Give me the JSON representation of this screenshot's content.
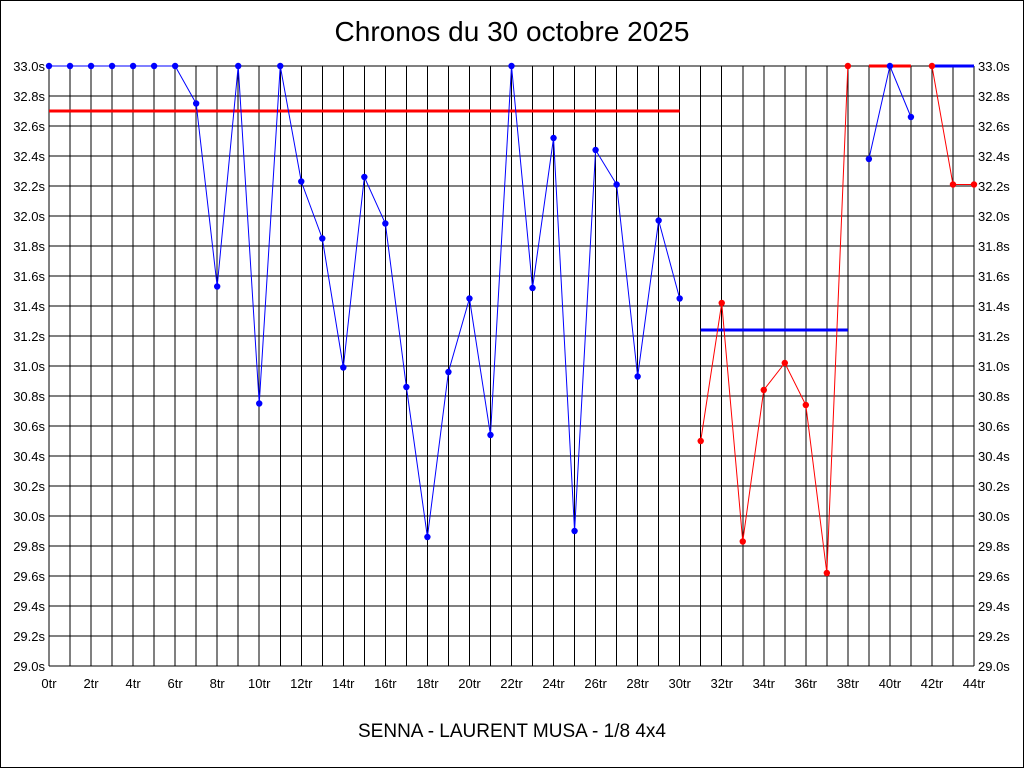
{
  "chart_data": {
    "type": "line",
    "title": "Chronos du 30 octobre 2025",
    "subtitle": "SENNA - LAURENT MUSA - 1/8 4x4",
    "xlabel": "",
    "ylabel": "",
    "grid": true,
    "xlim": [
      0,
      44
    ],
    "ylim": [
      29.0,
      33.0
    ],
    "x_ticks": [
      "0tr",
      "2tr",
      "4tr",
      "6tr",
      "8tr",
      "10tr",
      "12tr",
      "14tr",
      "16tr",
      "18tr",
      "20tr",
      "22tr",
      "24tr",
      "26tr",
      "28tr",
      "30tr",
      "32tr",
      "34tr",
      "36tr",
      "38tr",
      "40tr",
      "42tr",
      "44tr"
    ],
    "y_ticks": [
      "29.0s",
      "29.2s",
      "29.4s",
      "29.6s",
      "29.8s",
      "30.0s",
      "30.2s",
      "30.4s",
      "30.6s",
      "30.8s",
      "31.0s",
      "31.2s",
      "31.4s",
      "31.6s",
      "31.8s",
      "32.0s",
      "32.2s",
      "32.4s",
      "32.6s",
      "32.8s",
      "33.0s"
    ],
    "series": [
      {
        "color": "#0000ff",
        "x": [
          0,
          1,
          2,
          3,
          4,
          5,
          6,
          7,
          8,
          9,
          10,
          11,
          12,
          13,
          14,
          15,
          16,
          17,
          18,
          19,
          20,
          21,
          22,
          23,
          24,
          25,
          26,
          27,
          28,
          29,
          30
        ],
        "values": [
          33.0,
          33.0,
          33.0,
          33.0,
          33.0,
          33.0,
          33.0,
          32.75,
          31.53,
          33.0,
          30.75,
          33.0,
          32.23,
          31.85,
          30.99,
          32.26,
          31.95,
          30.86,
          29.86,
          30.96,
          31.45,
          30.54,
          33.0,
          31.52,
          32.52,
          29.9,
          32.44,
          32.21,
          30.93,
          31.97,
          31.45
        ]
      },
      {
        "color": "#ff0000",
        "x": [
          31,
          32,
          33,
          34,
          35,
          36,
          37,
          38
        ],
        "values": [
          30.5,
          31.42,
          29.83,
          30.84,
          31.02,
          30.74,
          29.62,
          33.0
        ]
      },
      {
        "color": "#0000ff",
        "x": [
          39,
          40,
          41
        ],
        "values": [
          32.38,
          33.0,
          32.66
        ]
      },
      {
        "color": "#ff0000",
        "x": [
          42,
          43,
          44
        ],
        "values": [
          33.0,
          32.21,
          32.21
        ]
      }
    ],
    "reference_lines": [
      {
        "color": "#ff0000",
        "x": [
          0,
          30
        ],
        "value": 32.7
      },
      {
        "color": "#0000ff",
        "x": [
          31,
          38
        ],
        "value": 31.24
      },
      {
        "color": "#ff0000",
        "x": [
          39,
          41
        ],
        "value": 33.0
      },
      {
        "color": "#0000ff",
        "x": [
          42,
          44
        ],
        "value": 33.0
      }
    ]
  }
}
